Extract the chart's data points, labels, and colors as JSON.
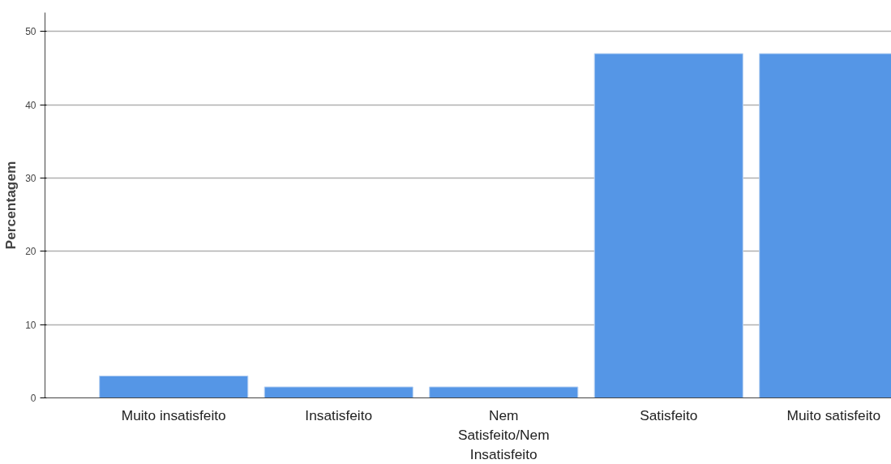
{
  "chart_data": {
    "type": "bar",
    "ylabel": "Percentagem",
    "categories": [
      "Muito insatisfeito",
      "Insatisfeito",
      "Nem\nSatisfeito/Nem\nInsatisfeito",
      "Satisfeito",
      "Muito satisfeito"
    ],
    "values": [
      3.0,
      1.5,
      1.5,
      47.0,
      47.0
    ],
    "color": "#5596e6",
    "ylim": [
      0,
      52.6
    ],
    "yticks": [
      0,
      10,
      20,
      30,
      40,
      50
    ],
    "grid": "y"
  }
}
